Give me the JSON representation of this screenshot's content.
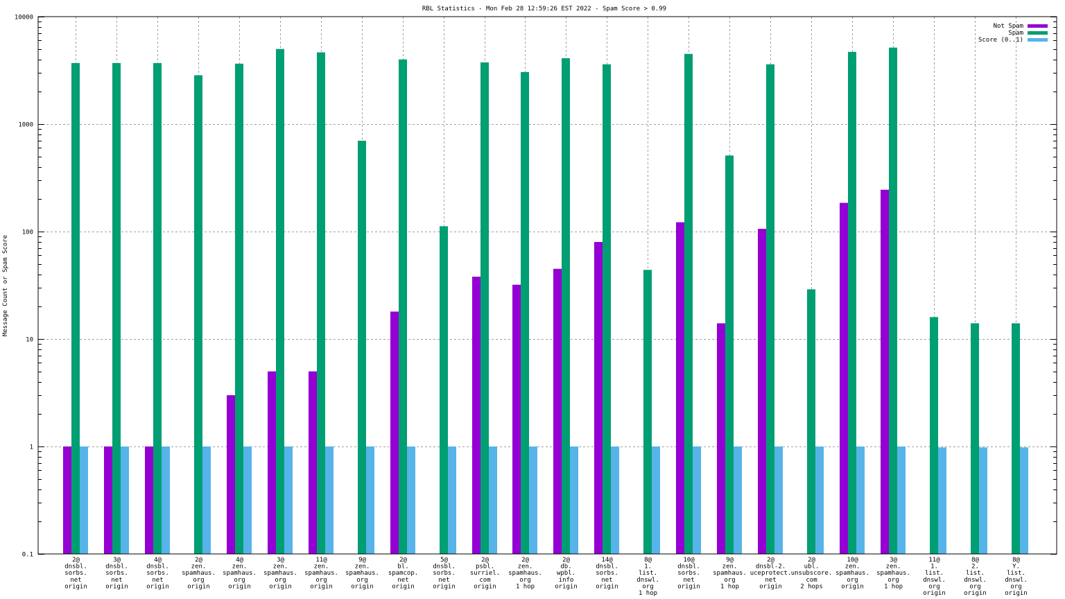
{
  "chart_data": {
    "type": "bar",
    "title": "RBL Statistics - Mon Feb 28 12:59:26 EST 2022 - Spam Score > 0.99",
    "xlabel": "",
    "ylabel": "Message Count or Spam Score",
    "yscale": "log",
    "ylim": [
      0.1,
      10000
    ],
    "y_ticks": [
      "0.1",
      "1",
      "10",
      "100",
      "1000",
      "10000"
    ],
    "grid": true,
    "legend_position": "top-right",
    "categories": [
      [
        "2@",
        "dnsbl.",
        "sorbs.",
        "net",
        "origin"
      ],
      [
        "3@",
        "dnsbl.",
        "sorbs.",
        "net",
        "origin"
      ],
      [
        "4@",
        "dnsbl.",
        "sorbs.",
        "net",
        "origin"
      ],
      [
        "2@",
        "zen.",
        "spamhaus.",
        "org",
        "origin"
      ],
      [
        "4@",
        "zen.",
        "spamhaus.",
        "org",
        "origin"
      ],
      [
        "3@",
        "zen.",
        "spamhaus.",
        "org",
        "origin"
      ],
      [
        "11@",
        "zen.",
        "spamhaus.",
        "org",
        "origin"
      ],
      [
        "9@",
        "zen.",
        "spamhaus.",
        "org",
        "origin"
      ],
      [
        "2@",
        "bl.",
        "spamcop.",
        "net",
        "origin"
      ],
      [
        "5@",
        "dnsbl.",
        "sorbs.",
        "net",
        "origin"
      ],
      [
        "2@",
        "psbl.",
        "surriel.",
        "com",
        "origin"
      ],
      [
        "2@",
        "zen.",
        "spamhaus.",
        "org",
        "1 hop"
      ],
      [
        "2@",
        "db.",
        "wpbl.",
        "info",
        "origin"
      ],
      [
        "14@",
        "dnsbl.",
        "sorbs.",
        "net",
        "origin"
      ],
      [
        "8@",
        "1.",
        "list.",
        "dnswl.",
        "org",
        "1 hop"
      ],
      [
        "10@",
        "dnsbl.",
        "sorbs.",
        "net",
        "origin"
      ],
      [
        "9@",
        "zen.",
        "spamhaus.",
        "org",
        "1 hop"
      ],
      [
        "2@",
        "dnsbl-2.",
        "uceprotect.",
        "net",
        "origin"
      ],
      [
        "2@",
        "ubl.",
        "unsubscore.",
        "com",
        "2 hops"
      ],
      [
        "10@",
        "zen.",
        "spamhaus.",
        "org",
        "origin"
      ],
      [
        "3@",
        "zen.",
        "spamhaus.",
        "org",
        "1 hop"
      ],
      [
        "11@",
        "1.",
        "list.",
        "dnswl.",
        "org",
        "origin"
      ],
      [
        "8@",
        "2.",
        "list.",
        "dnswl.",
        "org",
        "origin"
      ],
      [
        "8@",
        "Y.",
        "list.",
        "dnswl.",
        "org",
        "origin"
      ]
    ],
    "series": [
      {
        "name": "Not Spam",
        "color": "#9400d3",
        "values": [
          1,
          1,
          1,
          null,
          3,
          5,
          5,
          null,
          18,
          null,
          38,
          32,
          45,
          80,
          null,
          122,
          14,
          106,
          null,
          185,
          245,
          null,
          null,
          null
        ]
      },
      {
        "name": "Spam",
        "color": "#009e73",
        "values": [
          3700,
          3700,
          3700,
          2850,
          3650,
          5000,
          4650,
          700,
          4000,
          112,
          3750,
          3050,
          4100,
          3600,
          44,
          4500,
          510,
          3600,
          29,
          4700,
          5150,
          16,
          14,
          14
        ]
      },
      {
        "name": "Score (0..1)",
        "color": "#56b4e9",
        "values": [
          1,
          1,
          1,
          1,
          1,
          1,
          1,
          1,
          1,
          1,
          1,
          1,
          1,
          1,
          1,
          1,
          1,
          1,
          1,
          1,
          1,
          0.98,
          0.98,
          0.98
        ]
      }
    ]
  }
}
